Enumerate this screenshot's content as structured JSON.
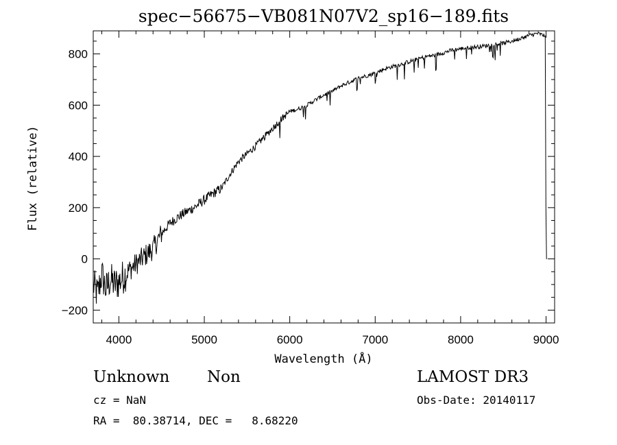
{
  "chart_data": {
    "type": "line",
    "title": "spec−56675−VB081N07V2_sp16−189.fits",
    "xlabel": "Wavelength (Å)",
    "ylabel": "Flux (relative)",
    "xlim": [
      3700,
      9100
    ],
    "ylim": [
      -250,
      890
    ],
    "xticks": [
      4000,
      5000,
      6000,
      7000,
      8000,
      9000
    ],
    "yticks": [
      -200,
      0,
      200,
      400,
      600,
      800
    ],
    "series": [
      {
        "name": "flux",
        "x": [
          3700,
          3750,
          3800,
          3850,
          3900,
          3950,
          4000,
          4100,
          4200,
          4300,
          4400,
          4500,
          4600,
          4700,
          4800,
          4900,
          5000,
          5100,
          5200,
          5300,
          5400,
          5500,
          5600,
          5700,
          5800,
          5900,
          6000,
          6100,
          6200,
          6300,
          6400,
          6500,
          6600,
          6700,
          6800,
          6900,
          7000,
          7100,
          7200,
          7300,
          7400,
          7500,
          7600,
          7700,
          7800,
          7900,
          8000,
          8100,
          8200,
          8300,
          8400,
          8500,
          8600,
          8700,
          8800,
          8900,
          8980,
          9000,
          9010
        ],
        "y": [
          -100,
          -140,
          -60,
          -120,
          -80,
          -100,
          -90,
          -50,
          -20,
          10,
          40,
          100,
          140,
          165,
          185,
          205,
          230,
          255,
          275,
          330,
          380,
          410,
          440,
          475,
          510,
          545,
          575,
          585,
          600,
          620,
          640,
          655,
          675,
          690,
          705,
          715,
          725,
          740,
          750,
          760,
          770,
          780,
          790,
          795,
          805,
          815,
          820,
          825,
          828,
          832,
          838,
          842,
          850,
          860,
          872,
          880,
          872,
          200,
          0
        ]
      }
    ]
  },
  "info": {
    "object_class": "Unknown",
    "object_subclass": "Non",
    "survey": "LAMOST DR3",
    "cz": "cz = NaN",
    "obs_date": "Obs-Date: 20140117",
    "coords": "RA =  80.38714, DEC =   8.68220"
  }
}
